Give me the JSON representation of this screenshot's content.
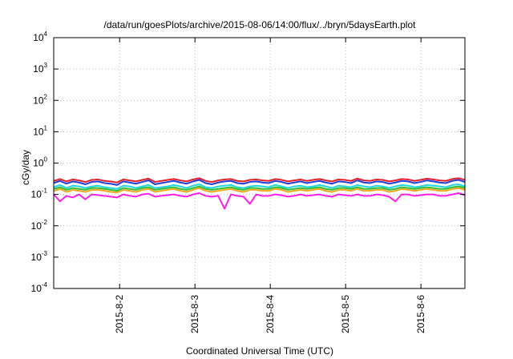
{
  "chart_data": {
    "type": "line",
    "title": "/data/run/goesPlots/archive/2015-08-06/14:00/flux/../bryn/5daysEarth.plot",
    "xlabel": "Coordinated Universal Time (UTC)",
    "ylabel": "cGy/day",
    "yscale": "log",
    "ylim": [
      0.0001,
      10000
    ],
    "xlim": [
      "2015-08-01 03:00",
      "2015-08-06 14:00"
    ],
    "x_tick_labels": [
      "2015-8-2",
      "2015-8-3",
      "2015-8-4",
      "2015-8-5",
      "2015-8-6"
    ],
    "x_ticks": [
      "2015-08-02 00:00",
      "2015-08-03 00:00",
      "2015-08-04 00:00",
      "2015-08-05 00:00",
      "2015-08-06 00:00"
    ],
    "y_ticks": [
      {
        "base": "10",
        "exp": "-4",
        "value": 0.0001
      },
      {
        "base": "10",
        "exp": "-3",
        "value": 0.001
      },
      {
        "base": "10",
        "exp": "-2",
        "value": 0.01
      },
      {
        "base": "10",
        "exp": "-1",
        "value": 0.1
      },
      {
        "base": "10",
        "exp": "0",
        "value": 1
      },
      {
        "base": "10",
        "exp": "1",
        "value": 10
      },
      {
        "base": "10",
        "exp": "2",
        "value": 100
      },
      {
        "base": "10",
        "exp": "3",
        "value": 1000
      },
      {
        "base": "10",
        "exp": "4",
        "value": 10000
      }
    ],
    "grid": true,
    "legend": "none",
    "series": [
      {
        "color": "#e6202a",
        "values": [
          0.27,
          0.31,
          0.26,
          0.3,
          0.28,
          0.25,
          0.29,
          0.3,
          0.27,
          0.26,
          0.24,
          0.3,
          0.28,
          0.26,
          0.29,
          0.32,
          0.25,
          0.27,
          0.29,
          0.31,
          0.28,
          0.26,
          0.3,
          0.33,
          0.27,
          0.25,
          0.28,
          0.3,
          0.31,
          0.27,
          0.26,
          0.29,
          0.3,
          0.28,
          0.27,
          0.31,
          0.29,
          0.26,
          0.28,
          0.3,
          0.27,
          0.29,
          0.31,
          0.28,
          0.26,
          0.3,
          0.29,
          0.27,
          0.32,
          0.28,
          0.27,
          0.3,
          0.29,
          0.26,
          0.28,
          0.31,
          0.3,
          0.27,
          0.29,
          0.32,
          0.3,
          0.28,
          0.27,
          0.31,
          0.33,
          0.29
        ]
      },
      {
        "color": "#1f3fd8",
        "values": [
          0.23,
          0.27,
          0.22,
          0.26,
          0.24,
          0.21,
          0.25,
          0.26,
          0.23,
          0.22,
          0.2,
          0.26,
          0.24,
          0.22,
          0.25,
          0.28,
          0.21,
          0.23,
          0.25,
          0.27,
          0.24,
          0.22,
          0.26,
          0.29,
          0.23,
          0.21,
          0.24,
          0.26,
          0.27,
          0.23,
          0.22,
          0.25,
          0.26,
          0.24,
          0.23,
          0.27,
          0.25,
          0.22,
          0.24,
          0.26,
          0.23,
          0.25,
          0.27,
          0.24,
          0.22,
          0.26,
          0.25,
          0.23,
          0.28,
          0.24,
          0.23,
          0.26,
          0.25,
          0.22,
          0.24,
          0.27,
          0.26,
          0.23,
          0.25,
          0.28,
          0.26,
          0.24,
          0.23,
          0.27,
          0.29,
          0.25
        ]
      },
      {
        "color": "#22d6e0",
        "values": [
          0.17,
          0.2,
          0.16,
          0.19,
          0.18,
          0.16,
          0.18,
          0.19,
          0.17,
          0.16,
          0.15,
          0.19,
          0.18,
          0.16,
          0.18,
          0.2,
          0.16,
          0.17,
          0.18,
          0.2,
          0.18,
          0.16,
          0.19,
          0.21,
          0.17,
          0.16,
          0.18,
          0.19,
          0.2,
          0.17,
          0.16,
          0.18,
          0.19,
          0.18,
          0.17,
          0.2,
          0.18,
          0.16,
          0.18,
          0.19,
          0.17,
          0.18,
          0.2,
          0.18,
          0.16,
          0.19,
          0.18,
          0.17,
          0.2,
          0.18,
          0.17,
          0.19,
          0.18,
          0.16,
          0.18,
          0.2,
          0.19,
          0.17,
          0.18,
          0.2,
          0.19,
          0.18,
          0.17,
          0.2,
          0.21,
          0.18
        ]
      },
      {
        "color": "#2fbf3a",
        "values": [
          0.15,
          0.17,
          0.14,
          0.16,
          0.15,
          0.14,
          0.16,
          0.16,
          0.15,
          0.14,
          0.13,
          0.16,
          0.15,
          0.14,
          0.16,
          0.17,
          0.14,
          0.15,
          0.16,
          0.17,
          0.15,
          0.14,
          0.16,
          0.18,
          0.15,
          0.14,
          0.15,
          0.16,
          0.17,
          0.15,
          0.14,
          0.16,
          0.16,
          0.15,
          0.15,
          0.17,
          0.16,
          0.14,
          0.15,
          0.16,
          0.15,
          0.16,
          0.17,
          0.15,
          0.14,
          0.16,
          0.16,
          0.15,
          0.17,
          0.15,
          0.15,
          0.16,
          0.16,
          0.14,
          0.15,
          0.17,
          0.16,
          0.15,
          0.16,
          0.17,
          0.16,
          0.15,
          0.15,
          0.17,
          0.18,
          0.16
        ]
      },
      {
        "color": "#f2a81e",
        "values": [
          0.13,
          0.15,
          0.12,
          0.14,
          0.13,
          0.12,
          0.14,
          0.14,
          0.13,
          0.12,
          0.115,
          0.14,
          0.13,
          0.12,
          0.14,
          0.15,
          0.12,
          0.13,
          0.14,
          0.15,
          0.13,
          0.12,
          0.14,
          0.16,
          0.13,
          0.12,
          0.13,
          0.14,
          0.15,
          0.13,
          0.12,
          0.14,
          0.14,
          0.13,
          0.13,
          0.15,
          0.14,
          0.12,
          0.13,
          0.14,
          0.13,
          0.14,
          0.15,
          0.13,
          0.12,
          0.14,
          0.14,
          0.13,
          0.15,
          0.13,
          0.13,
          0.14,
          0.14,
          0.12,
          0.13,
          0.15,
          0.14,
          0.13,
          0.14,
          0.15,
          0.14,
          0.13,
          0.13,
          0.15,
          0.16,
          0.14
        ]
      },
      {
        "color": "#ff1fe6",
        "values": [
          0.1,
          0.06,
          0.09,
          0.08,
          0.1,
          0.07,
          0.1,
          0.095,
          0.09,
          0.085,
          0.08,
          0.1,
          0.09,
          0.085,
          0.1,
          0.105,
          0.085,
          0.09,
          0.095,
          0.1,
          0.09,
          0.085,
          0.1,
          0.11,
          0.09,
          0.085,
          0.09,
          0.035,
          0.1,
          0.09,
          0.085,
          0.05,
          0.1,
          0.09,
          0.09,
          0.1,
          0.095,
          0.085,
          0.09,
          0.1,
          0.09,
          0.095,
          0.1,
          0.09,
          0.085,
          0.1,
          0.095,
          0.09,
          0.1,
          0.09,
          0.09,
          0.1,
          0.095,
          0.085,
          0.06,
          0.1,
          0.1,
          0.09,
          0.095,
          0.1,
          0.1,
          0.09,
          0.09,
          0.1,
          0.11,
          0.095
        ]
      }
    ]
  }
}
